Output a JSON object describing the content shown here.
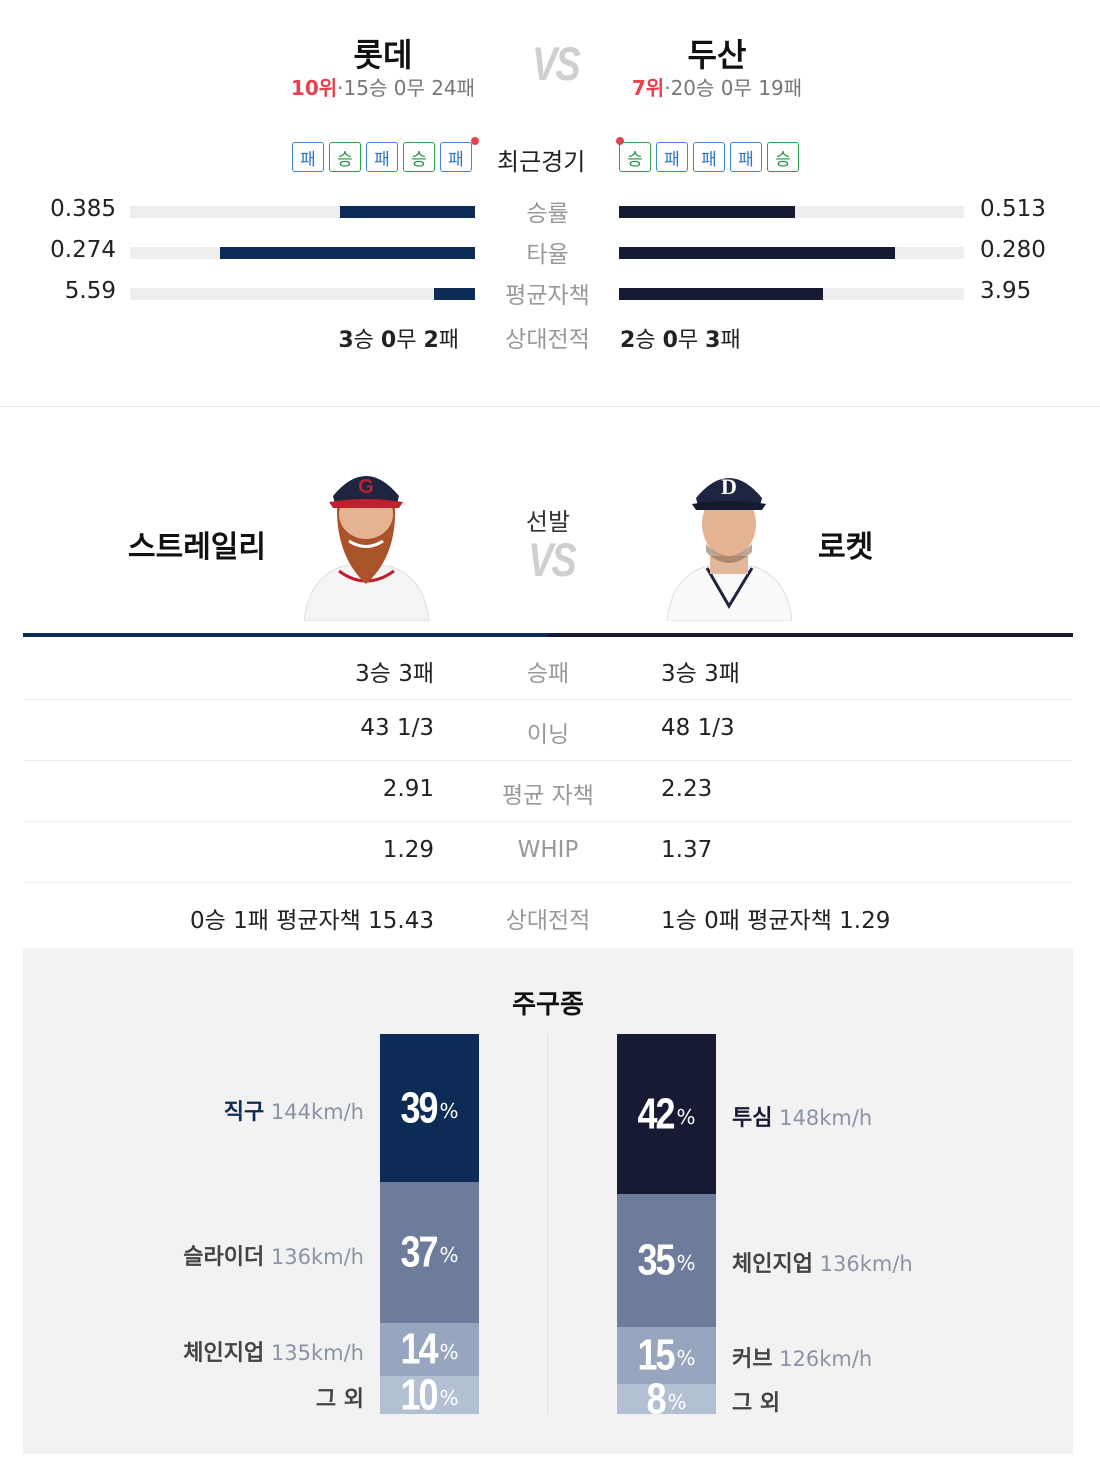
{
  "away": {
    "name": "롯데",
    "rank": "10위",
    "record": "15승 0무 24패",
    "recent": [
      "패",
      "승",
      "패",
      "승",
      "패"
    ],
    "color": "#0c2b55"
  },
  "home": {
    "name": "두산",
    "rank": "7위",
    "record": "20승 0무 19패",
    "recent": [
      "승",
      "패",
      "패",
      "패",
      "승"
    ],
    "color": "#161a33"
  },
  "vs_text": "VS",
  "recent_label": "최근경기",
  "rank_separator": "·",
  "team_stats": [
    {
      "label": "승률",
      "away": "0.385",
      "home": "0.513",
      "away_fill": 0.39,
      "home_fill": 0.51
    },
    {
      "label": "타율",
      "away": "0.274",
      "home": "0.280",
      "away_fill": 0.74,
      "home_fill": 0.8
    },
    {
      "label": "평균자책",
      "away": "5.59",
      "home": "3.95",
      "away_fill": 0.12,
      "home_fill": 0.59
    }
  ],
  "head_to_head": {
    "label": "상대전적",
    "away": {
      "w": "3",
      "w_unit": "승",
      "d": "0",
      "d_unit": "무",
      "l": "2",
      "l_unit": "패"
    },
    "home": {
      "w": "2",
      "w_unit": "승",
      "d": "0",
      "d_unit": "무",
      "l": "3",
      "l_unit": "패"
    }
  },
  "starters": {
    "label": "선발",
    "away": {
      "name": "스트레일리"
    },
    "home": {
      "name": "로켓"
    }
  },
  "pitcher_stats": [
    {
      "label": "승패",
      "away": "3승 3패",
      "home": "3승 3패"
    },
    {
      "label": "이닝",
      "away": "43 1/3",
      "home": "48 1/3"
    },
    {
      "label": "평균 자책",
      "away": "2.91",
      "home": "2.23"
    },
    {
      "label": "WHIP",
      "away": "1.29",
      "home": "1.37"
    },
    {
      "label": "상대전적",
      "away": "0승 1패 평균자책 15.43",
      "home": "1승 0패 평균자책 1.29"
    }
  ],
  "pitch_mix": {
    "title": "주구종",
    "pct_sign": "%",
    "away": [
      {
        "name": "직구",
        "speed": "144km/h",
        "pct": "39"
      },
      {
        "name": "슬라이더",
        "speed": "136km/h",
        "pct": "37"
      },
      {
        "name": "체인지업",
        "speed": "135km/h",
        "pct": "14"
      },
      {
        "name": "그 외",
        "speed": "",
        "pct": "10"
      }
    ],
    "home": [
      {
        "name": "투심",
        "speed": "148km/h",
        "pct": "42"
      },
      {
        "name": "체인지업",
        "speed": "136km/h",
        "pct": "35"
      },
      {
        "name": "커브",
        "speed": "126km/h",
        "pct": "15"
      },
      {
        "name": "그 외",
        "speed": "",
        "pct": "8"
      }
    ],
    "colors": [
      "#0c2b55",
      "#6e7c9c",
      "#97a5bf",
      "#b3bfd3"
    ]
  }
}
